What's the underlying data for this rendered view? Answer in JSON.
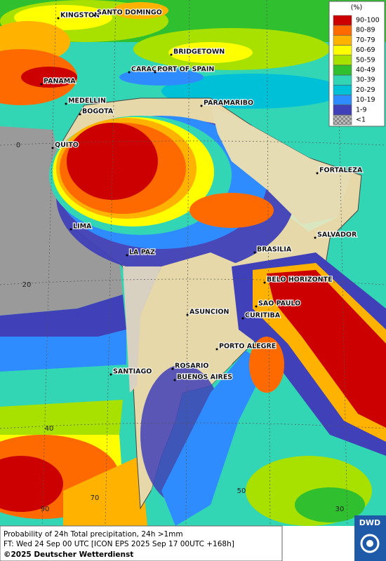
{
  "legend": {
    "title": "(%)",
    "items": [
      {
        "label": "90-100",
        "color": "#cc0000"
      },
      {
        "label": "80-89",
        "color": "#ff6a00"
      },
      {
        "label": "70-79",
        "color": "#ffb300"
      },
      {
        "label": "60-69",
        "color": "#ffff00"
      },
      {
        "label": "50-59",
        "color": "#a8e000"
      },
      {
        "label": "40-49",
        "color": "#2fbf2f"
      },
      {
        "label": "30-39",
        "color": "#33d6b4"
      },
      {
        "label": "20-29",
        "color": "#00c0d8"
      },
      {
        "label": "10-19",
        "color": "#2f8cff"
      },
      {
        "label": "1-9",
        "color": "#4040b8"
      },
      {
        "label": "<1",
        "color": "#9a9a9a"
      }
    ]
  },
  "cities": [
    {
      "name": "KINGSTON"
    },
    {
      "name": "SANTO DOMINGO"
    },
    {
      "name": "BRIDGETOWN"
    },
    {
      "name": "CARACAS"
    },
    {
      "name": "PORT OF SPAIN"
    },
    {
      "name": "PANAMA"
    },
    {
      "name": "MEDELLIN"
    },
    {
      "name": "BOGOTA"
    },
    {
      "name": "PARAMARIBO"
    },
    {
      "name": "QUITO"
    },
    {
      "name": "FORTALEZA"
    },
    {
      "name": "LIMA"
    },
    {
      "name": "SALVADOR"
    },
    {
      "name": "LA PAZ"
    },
    {
      "name": "BRASILIA"
    },
    {
      "name": "BELO HORIZONTE"
    },
    {
      "name": "SAO PAULO"
    },
    {
      "name": "ASUNCION"
    },
    {
      "name": "CURITIBA"
    },
    {
      "name": "PORTO ALEGRE"
    },
    {
      "name": "SANTIAGO"
    },
    {
      "name": "ROSARIO"
    },
    {
      "name": "BUENOS AIRES"
    }
  ],
  "graticule_labels": [
    0,
    20,
    40,
    90,
    70,
    50,
    30
  ],
  "footer": {
    "line1": "Probability of 24h Total precipitation, 24h >1mm",
    "line2": "FT: Wed 24 Sep 00 UTC [ICON EPS 2025 Sep 17 00UTC +168h]",
    "line3": "©2025 Deutscher Wetterdienst"
  },
  "logo": "DWD"
}
